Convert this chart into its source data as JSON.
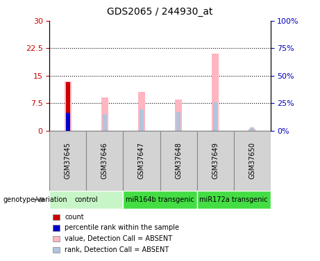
{
  "title": "GDS2065 / 244930_at",
  "samples": [
    "GSM37645",
    "GSM37646",
    "GSM37647",
    "GSM37648",
    "GSM37649",
    "GSM37650"
  ],
  "value_bars": [
    13.5,
    9.0,
    10.5,
    8.5,
    21.0,
    0.4
  ],
  "rank_bars": [
    5.0,
    4.5,
    5.8,
    5.0,
    7.8,
    0.8
  ],
  "count_bar": [
    13.2,
    0,
    0,
    0,
    0,
    0
  ],
  "percentile_bar": [
    4.8,
    0,
    0,
    0,
    0,
    0
  ],
  "value_color": "#ffb6c1",
  "rank_color": "#b0c4de",
  "count_color": "#cc0000",
  "percentile_color": "#0000cc",
  "ylim_left": [
    0,
    30
  ],
  "ylim_right": [
    0,
    100
  ],
  "yticks_left": [
    0,
    7.5,
    15,
    22.5,
    30
  ],
  "yticks_right": [
    0,
    25,
    50,
    75,
    100
  ],
  "ytick_labels_left": [
    "0",
    "7.5",
    "15",
    "22.5",
    "30"
  ],
  "ytick_labels_right": [
    "0%",
    "25%",
    "50%",
    "75%",
    "100%"
  ],
  "group_label": "genotype/variation",
  "legend_items": [
    {
      "label": "count",
      "color": "#cc0000"
    },
    {
      "label": "percentile rank within the sample",
      "color": "#0000cc"
    },
    {
      "label": "value, Detection Call = ABSENT",
      "color": "#ffb6c1"
    },
    {
      "label": "rank, Detection Call = ABSENT",
      "color": "#b0c4de"
    }
  ],
  "label_color_left": "#cc0000",
  "label_color_right": "#0000bb",
  "group_configs": [
    {
      "start": 0,
      "end": 2,
      "color": "#c8f5c8",
      "label": "control"
    },
    {
      "start": 2,
      "end": 4,
      "color": "#44dd44",
      "label": "miR164b transgenic"
    },
    {
      "start": 4,
      "end": 6,
      "color": "#44dd44",
      "label": "miR172a transgenic"
    }
  ],
  "cell_color": "#d3d3d3",
  "cell_border": "#888888"
}
